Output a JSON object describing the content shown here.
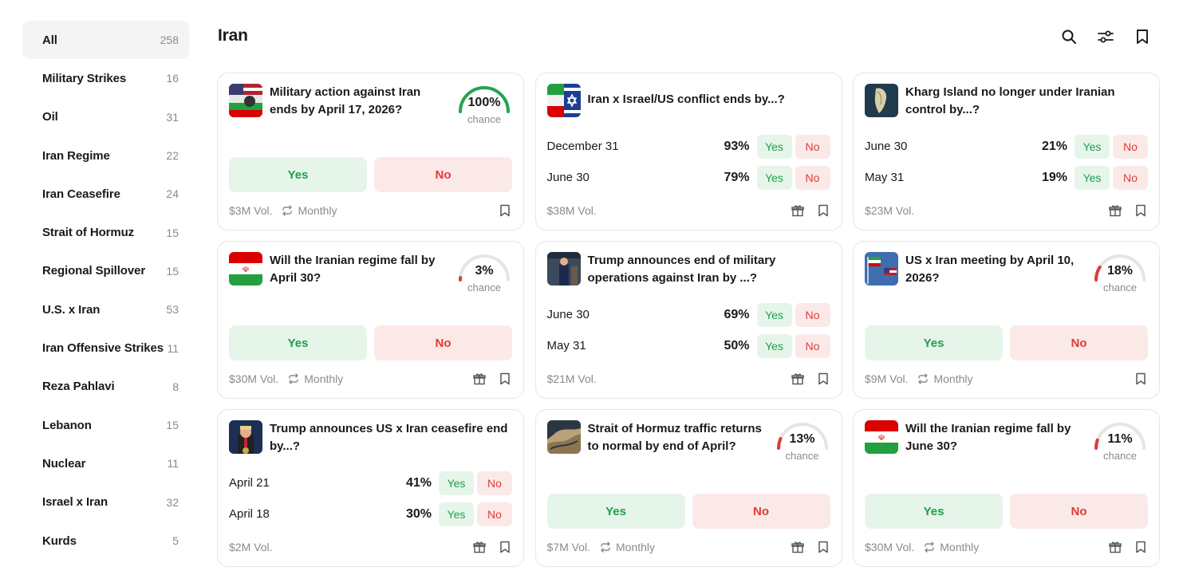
{
  "header": {
    "title": "Iran"
  },
  "colors": {
    "accent_green": "#1e9e4a",
    "accent_red": "#e03b35",
    "gauge_track": "#e5e5e5"
  },
  "sidebar": {
    "items": [
      {
        "label": "All",
        "count": "258"
      },
      {
        "label": "Military Strikes",
        "count": "16"
      },
      {
        "label": "Oil",
        "count": "31"
      },
      {
        "label": "Iran Regime",
        "count": "22"
      },
      {
        "label": "Iran Ceasefire",
        "count": "24"
      },
      {
        "label": "Strait of Hormuz",
        "count": "15"
      },
      {
        "label": "Regional Spillover",
        "count": "15"
      },
      {
        "label": "U.S. x Iran",
        "count": "53"
      },
      {
        "label": "Iran Offensive Strikes",
        "count": "11"
      },
      {
        "label": "Reza Pahlavi",
        "count": "8"
      },
      {
        "label": "Lebanon",
        "count": "15"
      },
      {
        "label": "Nuclear",
        "count": "11"
      },
      {
        "label": "Israel x Iran",
        "count": "32"
      },
      {
        "label": "Kurds",
        "count": "5"
      }
    ]
  },
  "common": {
    "yes": "Yes",
    "no": "No",
    "chance": "chance"
  },
  "markets": [
    {
      "question": "Military action against Iran ends by April 17, 2026?",
      "chance": "100%",
      "chance_value": 1.0,
      "gauge_color": "#22a550",
      "volume": "$3M Vol.",
      "frequency": "Monthly"
    },
    {
      "question": "Iran x Israel/US conflict ends by...?",
      "outcomes": [
        {
          "label": "December 31",
          "pct": "93%"
        },
        {
          "label": "June 30",
          "pct": "79%"
        }
      ],
      "volume": "$38M Vol."
    },
    {
      "question": "Kharg Island no longer under Iranian control by...?",
      "outcomes": [
        {
          "label": "June 30",
          "pct": "21%"
        },
        {
          "label": "May 31",
          "pct": "19%"
        }
      ],
      "volume": "$23M Vol."
    },
    {
      "question": "Will the Iranian regime fall by April 30?",
      "chance": "3%",
      "chance_value": 0.03,
      "gauge_color": "#e03b35",
      "volume": "$30M Vol.",
      "frequency": "Monthly"
    },
    {
      "question": "Trump announces end of military operations against Iran by ...?",
      "outcomes": [
        {
          "label": "June 30",
          "pct": "69%"
        },
        {
          "label": "May 31",
          "pct": "50%"
        }
      ],
      "volume": "$21M Vol."
    },
    {
      "question": "US x Iran meeting by April 10, 2026?",
      "chance": "18%",
      "chance_value": 0.18,
      "gauge_color": "#e03b35",
      "volume": "$9M Vol.",
      "frequency": "Monthly"
    },
    {
      "question": "Trump announces US x Iran ceasefire end by...?",
      "outcomes": [
        {
          "label": "April 21",
          "pct": "41%"
        },
        {
          "label": "April 18",
          "pct": "30%"
        }
      ],
      "volume": "$2M Vol."
    },
    {
      "question": "Strait of Hormuz traffic returns to normal by end of April?",
      "chance": "13%",
      "chance_value": 0.13,
      "gauge_color": "#e03b35",
      "volume": "$7M Vol.",
      "frequency": "Monthly"
    },
    {
      "question": "Will the Iranian regime fall by June 30?",
      "chance": "11%",
      "chance_value": 0.11,
      "gauge_color": "#e03b35",
      "volume": "$30M Vol.",
      "frequency": "Monthly"
    }
  ]
}
